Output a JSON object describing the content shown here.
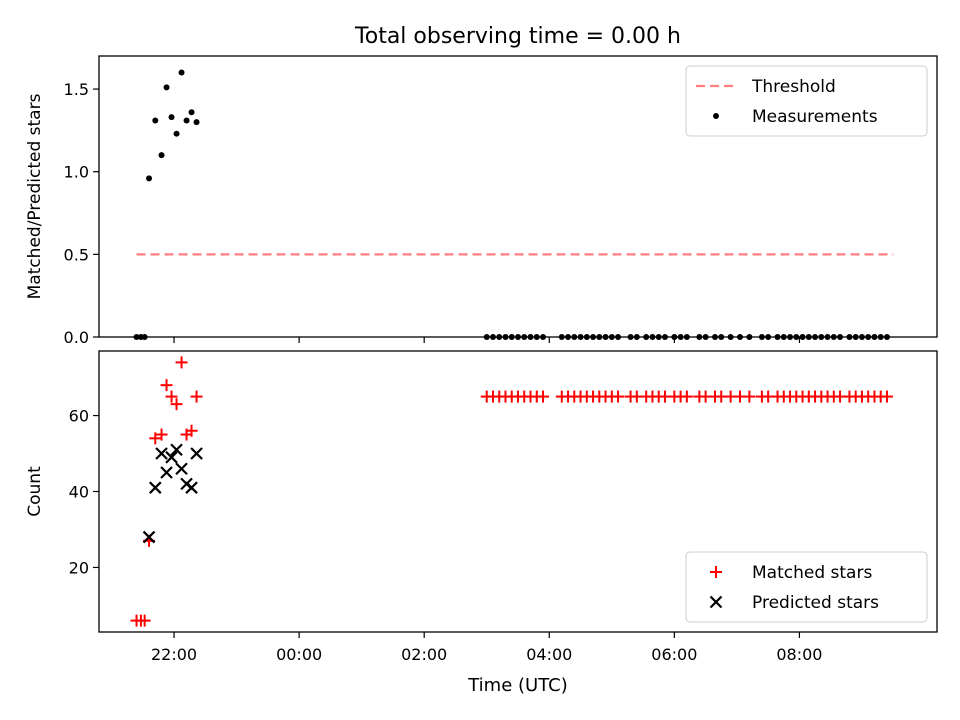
{
  "chart_data": {
    "title": "Total observing time = 0.00 h",
    "xlabel": "Time (UTC)",
    "x_ticks": [
      "22:00",
      "00:00",
      "02:00",
      "04:00",
      "06:00",
      "08:00"
    ],
    "x_tick_hours": [
      22,
      24,
      26,
      28,
      30,
      32
    ],
    "xlim_hours": [
      20.8,
      34.2
    ],
    "panels": [
      {
        "type": "scatter",
        "ylabel": "Matched/Predicted stars",
        "ylim": [
          0,
          1.7
        ],
        "y_ticks": [
          0.0,
          0.5,
          1.0,
          1.5
        ],
        "y_tick_labels": [
          "0.0",
          "0.5",
          "1.0",
          "1.5"
        ],
        "legend_position": "top-right",
        "threshold": {
          "name": "Threshold",
          "value": 0.5,
          "x_range": [
            21.4,
            33.5
          ],
          "color": "#ff7f7f",
          "style": "dashed"
        },
        "series": [
          {
            "name": "Measurements",
            "color": "#000000",
            "marker": "dot",
            "points": [
              [
                21.4,
                0
              ],
              [
                21.47,
                0
              ],
              [
                21.53,
                0
              ],
              [
                21.6,
                0.96
              ],
              [
                21.7,
                1.31
              ],
              [
                21.8,
                1.1
              ],
              [
                21.88,
                1.51
              ],
              [
                21.96,
                1.33
              ],
              [
                22.04,
                1.23
              ],
              [
                22.12,
                1.6
              ],
              [
                22.2,
                1.31
              ],
              [
                22.28,
                1.36
              ],
              [
                22.36,
                1.3
              ],
              [
                27.0,
                0
              ],
              [
                27.1,
                0
              ],
              [
                27.2,
                0
              ],
              [
                27.3,
                0
              ],
              [
                27.4,
                0
              ],
              [
                27.5,
                0
              ],
              [
                27.6,
                0
              ],
              [
                27.7,
                0
              ],
              [
                27.8,
                0
              ],
              [
                27.9,
                0
              ],
              [
                28.2,
                0
              ],
              [
                28.3,
                0
              ],
              [
                28.4,
                0
              ],
              [
                28.5,
                0
              ],
              [
                28.6,
                0
              ],
              [
                28.7,
                0
              ],
              [
                28.8,
                0
              ],
              [
                28.9,
                0
              ],
              [
                29.0,
                0
              ],
              [
                29.1,
                0
              ],
              [
                29.3,
                0
              ],
              [
                29.4,
                0
              ],
              [
                29.55,
                0
              ],
              [
                29.65,
                0
              ],
              [
                29.75,
                0
              ],
              [
                29.85,
                0
              ],
              [
                30.0,
                0
              ],
              [
                30.1,
                0
              ],
              [
                30.2,
                0
              ],
              [
                30.4,
                0
              ],
              [
                30.5,
                0
              ],
              [
                30.65,
                0
              ],
              [
                30.75,
                0
              ],
              [
                30.9,
                0
              ],
              [
                31.05,
                0
              ],
              [
                31.2,
                0
              ],
              [
                31.4,
                0
              ],
              [
                31.5,
                0
              ],
              [
                31.65,
                0
              ],
              [
                31.75,
                0
              ],
              [
                31.85,
                0
              ],
              [
                31.95,
                0
              ],
              [
                32.05,
                0
              ],
              [
                32.15,
                0
              ],
              [
                32.25,
                0
              ],
              [
                32.35,
                0
              ],
              [
                32.45,
                0
              ],
              [
                32.55,
                0
              ],
              [
                32.65,
                0
              ],
              [
                32.8,
                0
              ],
              [
                32.9,
                0
              ],
              [
                33.0,
                0
              ],
              [
                33.1,
                0
              ],
              [
                33.2,
                0
              ],
              [
                33.3,
                0
              ],
              [
                33.4,
                0
              ]
            ]
          }
        ]
      },
      {
        "type": "scatter",
        "ylabel": "Count",
        "ylim": [
          3,
          77
        ],
        "y_ticks": [
          20,
          40,
          60
        ],
        "y_tick_labels": [
          "20",
          "40",
          "60"
        ],
        "legend_position": "bottom-right",
        "series": [
          {
            "name": "Matched stars",
            "color": "#ff0000",
            "marker": "plus",
            "points": [
              [
                21.4,
                6
              ],
              [
                21.47,
                6
              ],
              [
                21.53,
                6
              ],
              [
                21.6,
                27
              ],
              [
                21.7,
                54
              ],
              [
                21.8,
                55
              ],
              [
                21.88,
                68
              ],
              [
                21.96,
                65
              ],
              [
                22.04,
                63
              ],
              [
                22.12,
                74
              ],
              [
                22.2,
                55
              ],
              [
                22.28,
                56
              ],
              [
                22.36,
                65
              ],
              [
                27.0,
                65
              ],
              [
                27.1,
                65
              ],
              [
                27.2,
                65
              ],
              [
                27.3,
                65
              ],
              [
                27.4,
                65
              ],
              [
                27.5,
                65
              ],
              [
                27.6,
                65
              ],
              [
                27.7,
                65
              ],
              [
                27.8,
                65
              ],
              [
                27.9,
                65
              ],
              [
                28.2,
                65
              ],
              [
                28.3,
                65
              ],
              [
                28.4,
                65
              ],
              [
                28.5,
                65
              ],
              [
                28.6,
                65
              ],
              [
                28.7,
                65
              ],
              [
                28.8,
                65
              ],
              [
                28.9,
                65
              ],
              [
                29.0,
                65
              ],
              [
                29.1,
                65
              ],
              [
                29.3,
                65
              ],
              [
                29.4,
                65
              ],
              [
                29.55,
                65
              ],
              [
                29.65,
                65
              ],
              [
                29.75,
                65
              ],
              [
                29.85,
                65
              ],
              [
                30.0,
                65
              ],
              [
                30.1,
                65
              ],
              [
                30.2,
                65
              ],
              [
                30.4,
                65
              ],
              [
                30.5,
                65
              ],
              [
                30.65,
                65
              ],
              [
                30.75,
                65
              ],
              [
                30.9,
                65
              ],
              [
                31.05,
                65
              ],
              [
                31.2,
                65
              ],
              [
                31.4,
                65
              ],
              [
                31.5,
                65
              ],
              [
                31.65,
                65
              ],
              [
                31.75,
                65
              ],
              [
                31.85,
                65
              ],
              [
                31.95,
                65
              ],
              [
                32.05,
                65
              ],
              [
                32.15,
                65
              ],
              [
                32.25,
                65
              ],
              [
                32.35,
                65
              ],
              [
                32.45,
                65
              ],
              [
                32.55,
                65
              ],
              [
                32.65,
                65
              ],
              [
                32.8,
                65
              ],
              [
                32.9,
                65
              ],
              [
                33.0,
                65
              ],
              [
                33.1,
                65
              ],
              [
                33.2,
                65
              ],
              [
                33.3,
                65
              ],
              [
                33.4,
                65
              ]
            ]
          },
          {
            "name": "Predicted stars",
            "color": "#000000",
            "marker": "x",
            "points": [
              [
                21.6,
                28
              ],
              [
                21.7,
                41
              ],
              [
                21.8,
                50
              ],
              [
                21.88,
                45
              ],
              [
                21.96,
                49
              ],
              [
                22.04,
                51
              ],
              [
                22.12,
                46
              ],
              [
                22.2,
                42
              ],
              [
                22.28,
                41
              ],
              [
                22.36,
                50
              ]
            ]
          }
        ]
      }
    ]
  }
}
